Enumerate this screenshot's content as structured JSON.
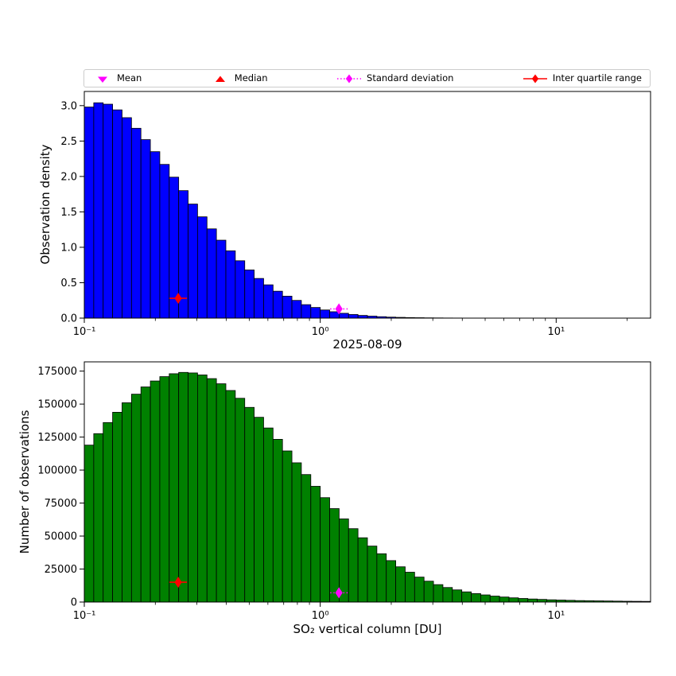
{
  "figure": {
    "background": "#ffffff"
  },
  "legend": {
    "items": [
      {
        "label": "Mean",
        "marker": "triangle-down",
        "color": "#ff00ff",
        "line": "none"
      },
      {
        "label": "Median",
        "marker": "triangle-up",
        "color": "#ff0000",
        "line": "none"
      },
      {
        "label": "Standard deviation",
        "marker": "thin-diamond",
        "color": "#ff00ff",
        "line": "dotted"
      },
      {
        "label": "Inter quartile range",
        "marker": "thin-diamond",
        "color": "#ff0000",
        "line": "solid"
      }
    ]
  },
  "chart_data": [
    {
      "name": "observation-density",
      "type": "bar",
      "x_scale": "log10",
      "xlabel": "2025-08-09",
      "ylabel": "Observation density",
      "x_range": [
        0.1,
        25.12
      ],
      "y_range": [
        0,
        3.2
      ],
      "x_ticks": [
        {
          "value": 0.1,
          "label": "10⁻¹"
        },
        {
          "value": 1,
          "label": "10⁰"
        },
        {
          "value": 10,
          "label": "10¹"
        }
      ],
      "y_ticks": [
        {
          "value": 0,
          "label": "0.0"
        },
        {
          "value": 0.5,
          "label": "0.5"
        },
        {
          "value": 1,
          "label": "1.0"
        },
        {
          "value": 1.5,
          "label": "1.5"
        },
        {
          "value": 2,
          "label": "2.0"
        },
        {
          "value": 2.5,
          "label": "2.5"
        },
        {
          "value": 3,
          "label": "3.0"
        }
      ],
      "bar_color": "#0000ff",
      "edge_color": "#000000",
      "bins": {
        "log10_start": -1.0,
        "log10_step": 0.04,
        "count": 60
      },
      "values": [
        2.98,
        3.04,
        3.02,
        2.94,
        2.83,
        2.68,
        2.52,
        2.35,
        2.17,
        1.99,
        1.8,
        1.61,
        1.43,
        1.26,
        1.1,
        0.95,
        0.81,
        0.68,
        0.56,
        0.47,
        0.38,
        0.31,
        0.25,
        0.19,
        0.15,
        0.115,
        0.09,
        0.068,
        0.051,
        0.038,
        0.028,
        0.02,
        0.014,
        0.0105,
        0.0076,
        0.0057,
        0.0038,
        0.0029,
        0.0019,
        0.0015,
        0.0011,
        0.0009,
        0.0007,
        0.0005,
        0.0004,
        0.0003,
        0.0002,
        0.0002,
        0.0001,
        0.0001,
        0,
        0,
        0,
        0,
        0,
        0,
        0,
        0,
        0,
        0
      ],
      "markers": [
        {
          "name": "inter-quartile-range",
          "shape": "thin-diamond",
          "x": 0.25,
          "y": 0.28,
          "color": "#ff0000",
          "line": "solid"
        },
        {
          "name": "standard-deviation",
          "shape": "thin-diamond",
          "x": 1.2,
          "y": 0.13,
          "color": "#ff00ff",
          "line": "dotted"
        }
      ]
    },
    {
      "name": "number-of-observations",
      "type": "bar",
      "x_scale": "log10",
      "xlabel": "SO₂ vertical column [DU]",
      "ylabel": "Number of observations",
      "x_range": [
        0.1,
        25.12
      ],
      "y_range": [
        0,
        182000
      ],
      "x_ticks": [
        {
          "value": 0.1,
          "label": "10⁻¹"
        },
        {
          "value": 1,
          "label": "10⁰"
        },
        {
          "value": 10,
          "label": "10¹"
        }
      ],
      "y_ticks": [
        {
          "value": 0,
          "label": "0"
        },
        {
          "value": 25000,
          "label": "25000"
        },
        {
          "value": 50000,
          "label": "50000"
        },
        {
          "value": 75000,
          "label": "75000"
        },
        {
          "value": 100000,
          "label": "100000"
        },
        {
          "value": 125000,
          "label": "125000"
        },
        {
          "value": 150000,
          "label": "150000"
        },
        {
          "value": 175000,
          "label": "175000"
        }
      ],
      "bar_color": "#008000",
      "edge_color": "#000000",
      "bins": {
        "log10_start": -1.0,
        "log10_step": 0.04,
        "count": 60
      },
      "values": [
        118900,
        127600,
        136000,
        143800,
        151000,
        157500,
        163000,
        167500,
        170800,
        173000,
        174000,
        173600,
        172100,
        169300,
        165400,
        160300,
        154400,
        147500,
        140000,
        131900,
        123300,
        114500,
        105500,
        96600,
        87700,
        79100,
        70800,
        63000,
        55600,
        48700,
        42400,
        36600,
        31400,
        26700,
        22600,
        18900,
        15800,
        13200,
        11000,
        9200,
        7700,
        6400,
        5400,
        4500,
        3800,
        3200,
        2700,
        2300,
        2000,
        1700,
        1500,
        1300,
        1100,
        1000,
        900,
        800,
        700,
        600,
        550,
        500
      ],
      "markers": [
        {
          "name": "inter-quartile-range",
          "shape": "thin-diamond",
          "x": 0.25,
          "y": 15000,
          "color": "#ff0000",
          "line": "solid"
        },
        {
          "name": "standard-deviation",
          "shape": "thin-diamond",
          "x": 1.2,
          "y": 7000,
          "color": "#ff00ff",
          "line": "dotted"
        }
      ]
    }
  ]
}
